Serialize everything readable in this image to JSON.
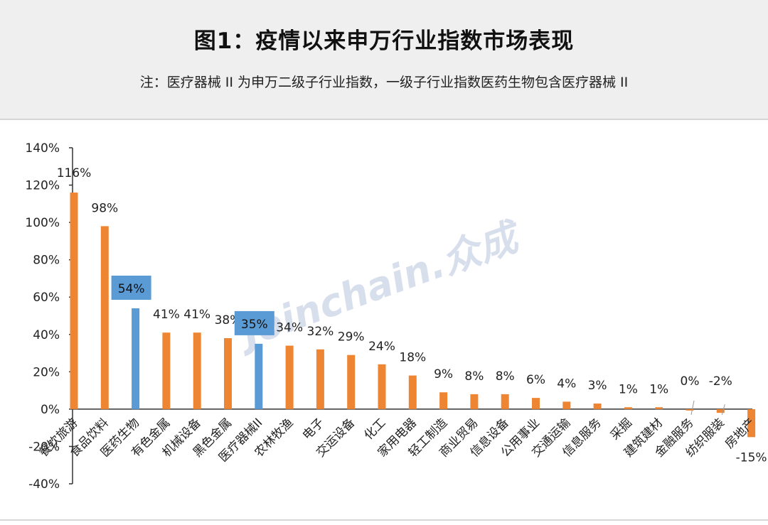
{
  "header": {
    "title": "图1：疫情以来申万行业指数市场表现",
    "note": "注：医疗器械 II 为申万二级子行业指数，一级子行业指数医药生物包含医疗器械 II"
  },
  "watermark": "Joinchain.众成",
  "chart_data": {
    "type": "bar",
    "title": "图1：疫情以来申万行业指数市场表现",
    "ylim": [
      -40,
      140
    ],
    "yticks": [
      "140%",
      "120%",
      "100%",
      "80%",
      "60%",
      "40%",
      "20%",
      "0%",
      "-20%",
      "-40%"
    ],
    "ytick_values": [
      140,
      120,
      100,
      80,
      60,
      40,
      20,
      0,
      -20,
      -40
    ],
    "grid": false,
    "categories": [
      "餐饮旅游",
      "食品饮料",
      "医药生物",
      "有色金属",
      "机械设备",
      "黑色金属",
      "医疗器械II",
      "农林牧渔",
      "电子",
      "交运设备",
      "化工",
      "家用电器",
      "轻工制造",
      "商业贸易",
      "信息设备",
      "公用事业",
      "交通运输",
      "信息服务",
      "采掘",
      "建筑建材",
      "金融服务",
      "纺织服装",
      "房地产"
    ],
    "values": [
      116,
      98,
      54,
      41,
      41,
      38,
      35,
      34,
      32,
      29,
      24,
      18,
      9,
      8,
      8,
      6,
      4,
      3,
      1,
      1,
      0,
      -2,
      -15
    ],
    "labels": [
      "116%",
      "98%",
      "54%",
      "41%",
      "41%",
      "38%",
      "35%",
      "34%",
      "32%",
      "29%",
      "24%",
      "18%",
      "9%",
      "8%",
      "8%",
      "6%",
      "4%",
      "3%",
      "1%",
      "1%",
      "0%",
      "-2%",
      "-15%"
    ],
    "highlighted": [
      "医药生物",
      "医疗器械II"
    ],
    "colors": {
      "default": "#ee8533",
      "highlight": "#5b9bd5",
      "label_box": "#5b9bd5"
    }
  }
}
